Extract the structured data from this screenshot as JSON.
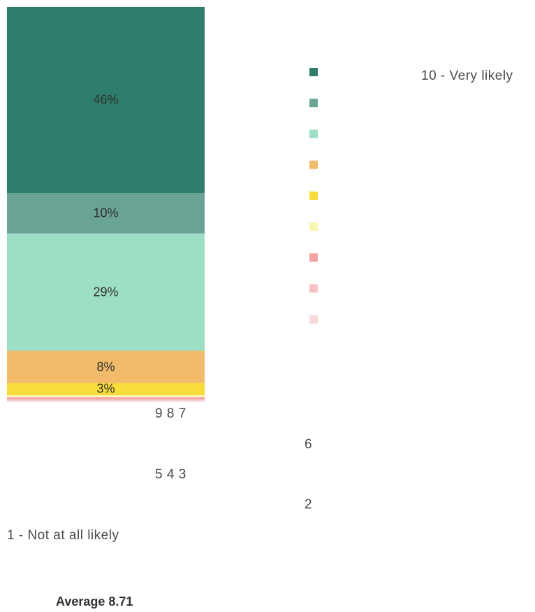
{
  "chart_data": {
    "type": "bar",
    "stacked": true,
    "orientation": "vertical",
    "categories": [
      ""
    ],
    "series": [
      {
        "name": "10 - Very likely",
        "value": 46,
        "label": "46%",
        "color": "#2f7e6c"
      },
      {
        "name": "9",
        "value": 10,
        "label": "10%",
        "color": "#6aa396"
      },
      {
        "name": "8",
        "value": 29,
        "label": "29%",
        "color": "#9ddfc4"
      },
      {
        "name": "7",
        "value": 8,
        "label": "8%",
        "color": "#f2bb6a"
      },
      {
        "name": "6",
        "value": 3,
        "label": "3%",
        "color": "#f7dc3a"
      },
      {
        "name": "5",
        "value": 0.5,
        "label": "",
        "color": "#fbf5b4"
      },
      {
        "name": "4",
        "value": 0.5,
        "label": "",
        "color": "#f4a3a3"
      },
      {
        "name": "3",
        "value": 0.3,
        "label": "",
        "color": "#f6c2c4"
      },
      {
        "name": "2",
        "value": 0.2,
        "label": "",
        "color": "#f8d8da"
      },
      {
        "name": "1 - Not at all likely",
        "value": 0.2,
        "label": "",
        "color": "#fbe6e8"
      }
    ],
    "ylim": [
      0,
      97.7
    ],
    "legend_position": "right",
    "average_text": "Average 8.71"
  },
  "legend_labels": {
    "very_likely": "10 - Very likely",
    "group_987": "9 8 7",
    "six": "6",
    "group_543": "5 4 3",
    "two": "2",
    "not_likely": "1 - Not at all likely"
  }
}
